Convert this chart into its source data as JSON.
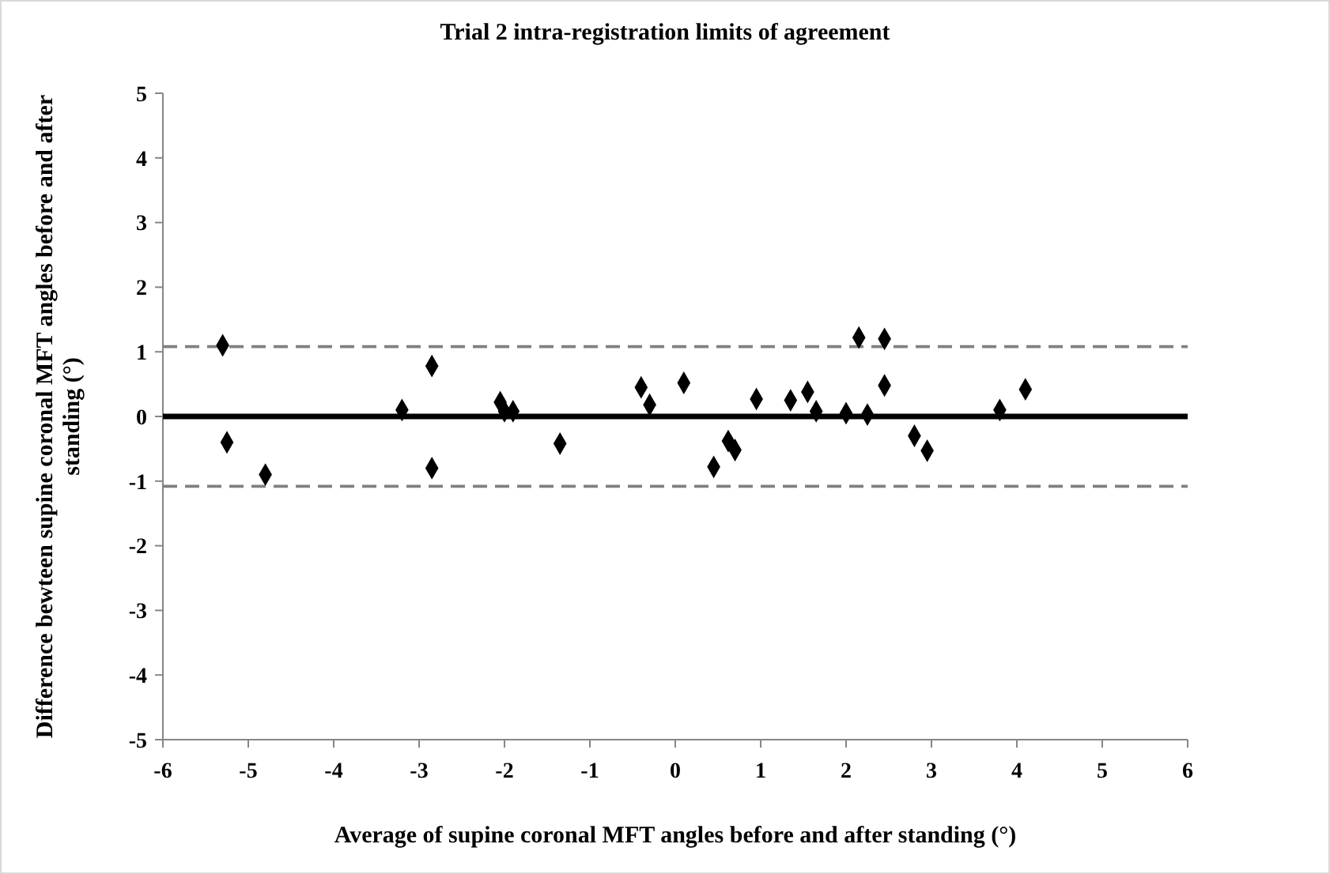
{
  "chart_data": {
    "type": "scatter",
    "title": "Trial 2 intra-registration limits of agreement",
    "xlabel": "Average of supine coronal MFT angles before and after standing (°)",
    "ylabel": "Difference bewteen supine coronal MFT angles before and after standing (°)",
    "x": [
      -5.3,
      -5.25,
      -4.8,
      -3.2,
      -2.85,
      -2.85,
      -2.05,
      -2.0,
      -1.9,
      -1.35,
      -0.4,
      -0.3,
      0.1,
      0.45,
      0.62,
      0.7,
      0.95,
      1.35,
      1.55,
      1.65,
      2.0,
      2.15,
      2.25,
      2.45,
      2.45,
      2.8,
      2.95,
      3.8,
      4.1
    ],
    "series": [
      {
        "color": "#000000",
        "values": [
          1.1,
          -0.4,
          -0.9,
          0.1,
          0.78,
          -0.8,
          0.22,
          0.08,
          0.08,
          -0.42,
          0.45,
          0.18,
          0.52,
          -0.78,
          -0.38,
          -0.52,
          0.27,
          0.25,
          0.38,
          0.08,
          0.05,
          1.22,
          0.03,
          1.2,
          0.48,
          -0.3,
          -0.53,
          0.1,
          0.42
        ]
      }
    ],
    "marker": "diamond",
    "xlim": [
      -6,
      6
    ],
    "xticks": [
      -6,
      -5,
      -4,
      -3,
      -2,
      -1,
      0,
      1,
      2,
      3,
      4,
      5,
      6
    ],
    "ylim": [
      -5,
      5
    ],
    "yticks": [
      -5,
      -4,
      -3,
      -2,
      -1,
      0,
      1,
      2,
      3,
      4,
      5
    ],
    "ref_lines": [
      {
        "axis": "y",
        "value": 0,
        "color": "#000000",
        "line_style": "solid"
      },
      {
        "axis": "y",
        "value": 1.08,
        "color": "#808080",
        "line_style": "dashed"
      },
      {
        "axis": "y",
        "value": -1.08,
        "color": "#808080",
        "line_style": "dashed"
      }
    ]
  }
}
